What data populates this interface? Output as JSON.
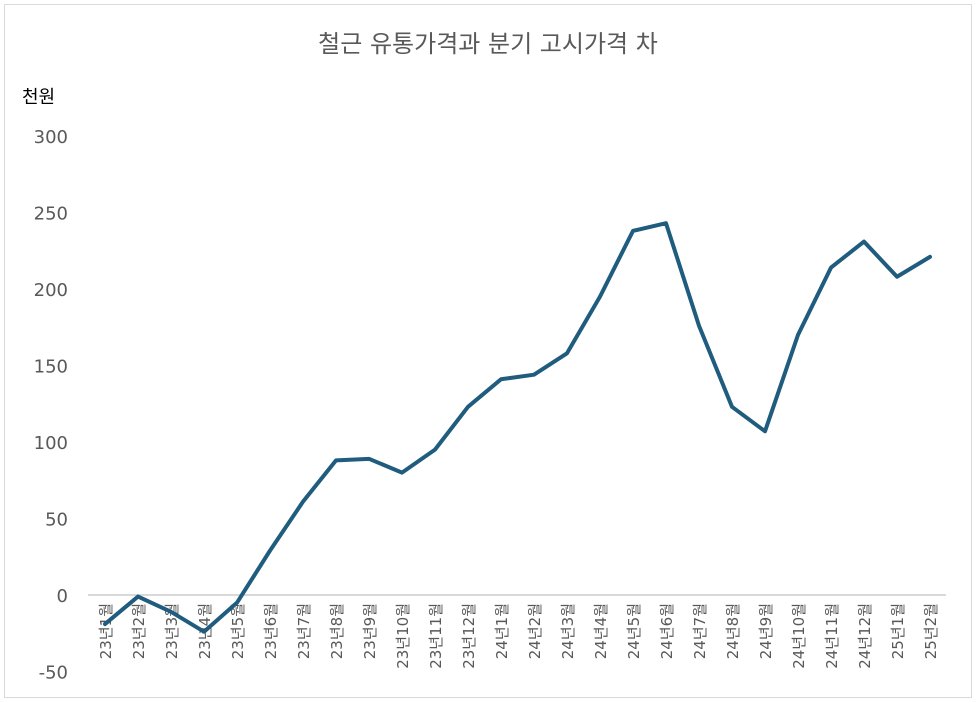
{
  "chart_data": {
    "type": "line",
    "title": "철근 유통가격과 분기 고시가격 차",
    "ylabel": "천원",
    "xlabel": "",
    "ylim": [
      -50,
      300
    ],
    "yticks": [
      -50,
      0,
      50,
      100,
      150,
      200,
      250,
      300
    ],
    "grid": false,
    "legend": "none",
    "line_color": "#1f5c7e",
    "categories": [
      "23년1월",
      "23년2월",
      "23년3월",
      "23년4월",
      "23년5월",
      "23년6월",
      "23년7월",
      "23년8월",
      "23년9월",
      "23년10월",
      "23년11월",
      "23년12월",
      "24년1월",
      "24년2월",
      "24년3월",
      "24년4월",
      "24년5월",
      "24년6월",
      "24년7월",
      "24년8월",
      "24년9월",
      "24년10월",
      "24년11월",
      "24년12월",
      "25년1월",
      "25년2월"
    ],
    "series": [
      {
        "name": "차",
        "values": [
          -19,
          -1,
          -11,
          -24,
          -5,
          29,
          61,
          88,
          89,
          80,
          95,
          123,
          141,
          144,
          158,
          195,
          238,
          243,
          176,
          123,
          107,
          170,
          214,
          231,
          208,
          221
        ]
      }
    ]
  }
}
